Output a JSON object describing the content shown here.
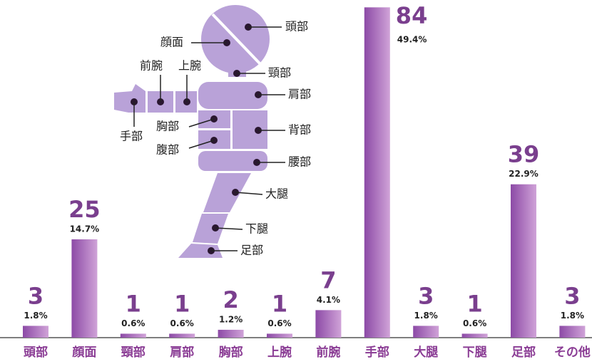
{
  "chart_data": {
    "type": "bar",
    "categories": [
      "頭部",
      "顔面",
      "頸部",
      "肩部",
      "胸部",
      "上腕",
      "前腕",
      "手部",
      "大腿",
      "下腿",
      "足部",
      "その他"
    ],
    "values": [
      3,
      25,
      1,
      1,
      2,
      1,
      7,
      84,
      3,
      1,
      39,
      3
    ],
    "shares": [
      1.8,
      14.7,
      0.6,
      0.6,
      1.2,
      0.6,
      4.1,
      49.4,
      1.8,
      0.6,
      22.9,
      1.8
    ],
    "share_labels": [
      "1.8%",
      "14.7%",
      "0.6%",
      "0.6%",
      "1.2%",
      "0.6%",
      "4.1%",
      "49.4%",
      "1.8%",
      "0.6%",
      "22.9%",
      "1.8%"
    ],
    "color": "#9a5cb0"
  },
  "body_diagram": {
    "labels": [
      "背部",
      "腹部",
      "腰部"
    ]
  }
}
